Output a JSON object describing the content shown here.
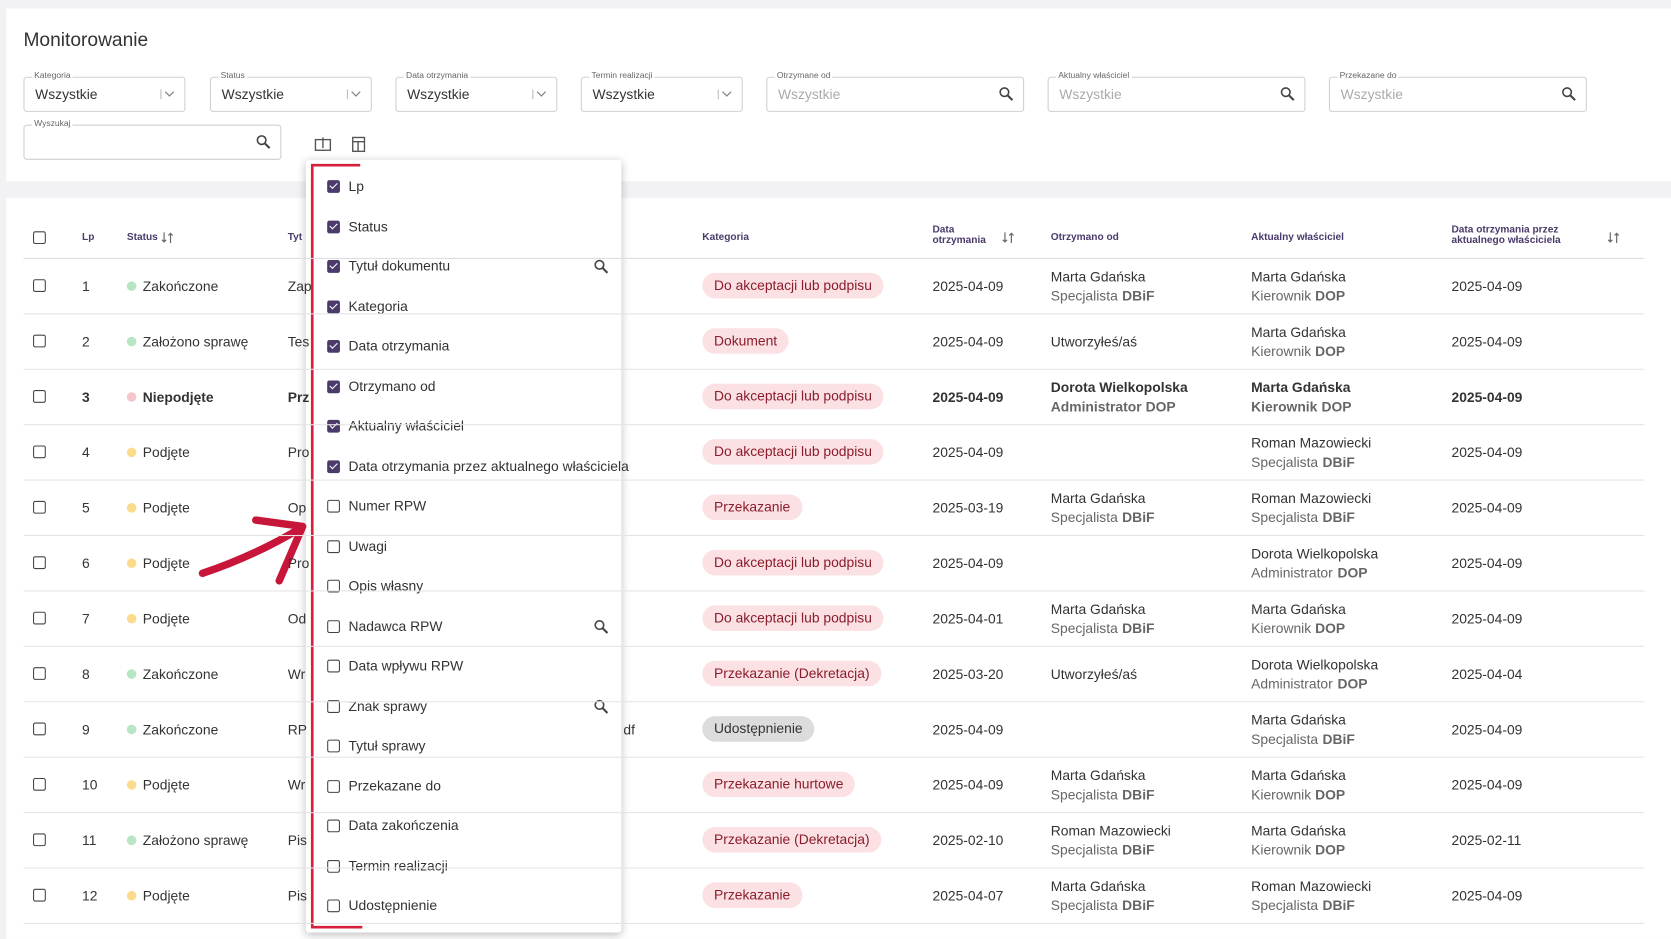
{
  "header": {
    "title": "Monitorowanie"
  },
  "filters": [
    {
      "label": "Kategoria",
      "value": "Wszystkie",
      "kind": "select"
    },
    {
      "label": "Status",
      "value": "Wszystkie",
      "kind": "select"
    },
    {
      "label": "Data otrzymania",
      "value": "Wszystkie",
      "kind": "select"
    },
    {
      "label": "Termin realizacji",
      "value": "Wszystkie",
      "kind": "select"
    },
    {
      "label": "Otrzymane od",
      "placeholder": "Wszystkie",
      "kind": "search"
    },
    {
      "label": "Aktualny właściciel",
      "placeholder": "Wszystkie",
      "kind": "search"
    },
    {
      "label": "Przekazane do",
      "placeholder": "Wszystkie",
      "kind": "search"
    },
    {
      "label": "Wyszukaj",
      "kind": "search"
    }
  ],
  "table": {
    "columns": [
      {
        "label": "Lp"
      },
      {
        "label": "Status",
        "sortable": true
      },
      {
        "label": "Tyt"
      },
      {
        "label": "Kategoria"
      },
      {
        "label": "Data otrzymania",
        "sortable": true
      },
      {
        "label": "Otrzymano od"
      },
      {
        "label": "Aktualny właściciel"
      },
      {
        "label": "Data otrzymania przez aktualnego właściciela",
        "sortable": true
      }
    ],
    "rows": [
      {
        "lp": "1",
        "status": "Zakończone",
        "status_color": "#b8e6c4",
        "title": "Zap",
        "category": "Do akceptacji lub podpisu",
        "date": "2025-04-09",
        "from": {
          "name": "Marta Gdańska",
          "role": "Specjalista",
          "unit": "DBiF"
        },
        "owner": {
          "name": "Marta Gdańska",
          "role": "Kierownik",
          "unit": "DOP"
        },
        "owner_date": "2025-04-09"
      },
      {
        "lp": "2",
        "status": "Założono sprawę",
        "status_color": "#b8e6c4",
        "title": "Tes",
        "category": "Dokument",
        "date": "2025-04-09",
        "from": {
          "name": "Utworzyłeś/aś"
        },
        "owner": {
          "name": "Marta Gdańska",
          "role": "Kierownik",
          "unit": "DOP"
        },
        "owner_date": "2025-04-09"
      },
      {
        "lp": "3",
        "status": "Niepodjęte",
        "status_color": "#f7c6cc",
        "bold": true,
        "title": "Prz",
        "category": "Do akceptacji lub podpisu",
        "date": "2025-04-09",
        "from": {
          "name": "Dorota Wielkopolska",
          "role": "Administrator",
          "unit": "DOP"
        },
        "owner": {
          "name": "Marta Gdańska",
          "role": "Kierownik",
          "unit": "DOP"
        },
        "owner_date": "2025-04-09"
      },
      {
        "lp": "4",
        "status": "Podjęte",
        "status_color": "#fbdc8c",
        "title": "Pro",
        "category": "Do akceptacji lub podpisu",
        "date": "2025-04-09",
        "owner": {
          "name": "Roman Mazowiecki",
          "role": "Specjalista",
          "unit": "DBiF"
        },
        "owner_date": "2025-04-09"
      },
      {
        "lp": "5",
        "status": "Podjęte",
        "status_color": "#fbdc8c",
        "title": "Op",
        "category": "Przekazanie",
        "date": "2025-03-19",
        "from": {
          "name": "Marta Gdańska",
          "role": "Specjalista",
          "unit": "DBiF"
        },
        "owner": {
          "name": "Roman Mazowiecki",
          "role": "Specjalista",
          "unit": "DBiF"
        },
        "owner_date": "2025-04-09"
      },
      {
        "lp": "6",
        "status": "Podjęte",
        "status_color": "#fbdc8c",
        "title": "Pro",
        "category": "Do akceptacji lub podpisu",
        "date": "2025-04-09",
        "owner": {
          "name": "Dorota Wielkopolska",
          "role": "Administrator",
          "unit": "DOP"
        },
        "owner_date": "2025-04-09"
      },
      {
        "lp": "7",
        "status": "Podjęte",
        "status_color": "#fbdc8c",
        "title": "Od",
        "category": "Do akceptacji lub podpisu",
        "date": "2025-04-01",
        "from": {
          "name": "Marta Gdańska",
          "role": "Specjalista",
          "unit": "DBiF"
        },
        "owner": {
          "name": "Marta Gdańska",
          "role": "Kierownik",
          "unit": "DOP"
        },
        "owner_date": "2025-04-09"
      },
      {
        "lp": "8",
        "status": "Zakończone",
        "status_color": "#b8e6c4",
        "title": "Wr",
        "category": "Przekazanie (Dekretacja)",
        "date": "2025-03-20",
        "from": {
          "name": "Utworzyłeś/aś"
        },
        "owner": {
          "name": "Dorota Wielkopolska",
          "role": "Administrator",
          "unit": "DOP"
        },
        "owner_date": "2025-04-04"
      },
      {
        "lp": "9",
        "status": "Zakończone",
        "status_color": "#b8e6c4",
        "title": "RP",
        "title_tail": "df",
        "category": "Udostępnienie",
        "category_color": "#dcdcdc",
        "date": "2025-04-09",
        "owner": {
          "name": "Marta Gdańska",
          "role": "Specjalista",
          "unit": "DBiF"
        },
        "owner_date": "2025-04-09"
      },
      {
        "lp": "10",
        "status": "Podjęte",
        "status_color": "#fbdc8c",
        "title": "Wr",
        "category": "Przekazanie hurtowe",
        "date": "2025-04-09",
        "from": {
          "name": "Marta Gdańska",
          "role": "Specjalista",
          "unit": "DBiF"
        },
        "owner": {
          "name": "Marta Gdańska",
          "role": "Kierownik",
          "unit": "DOP"
        },
        "owner_date": "2025-04-09"
      },
      {
        "lp": "11",
        "status": "Założono sprawę",
        "status_color": "#b8e6c4",
        "title": "Pis",
        "category": "Przekazanie (Dekretacja)",
        "date": "2025-02-10",
        "from": {
          "name": "Roman Mazowiecki",
          "role": "Specjalista",
          "unit": "DBiF"
        },
        "owner": {
          "name": "Marta Gdańska",
          "role": "Kierownik",
          "unit": "DOP"
        },
        "owner_date": "2025-02-11"
      },
      {
        "lp": "12",
        "status": "Podjęte",
        "status_color": "#fbdc8c",
        "title": "Pis",
        "category": "Przekazanie",
        "date": "2025-04-07",
        "from": {
          "name": "Marta Gdańska",
          "role": "Specjalista",
          "unit": "DBiF"
        },
        "owner": {
          "name": "Roman Mazowiecki",
          "role": "Specjalista",
          "unit": "DBiF"
        },
        "owner_date": "2025-04-09"
      }
    ]
  },
  "column_menu": {
    "items": [
      {
        "label": "Lp",
        "checked": true
      },
      {
        "label": "Status",
        "checked": true
      },
      {
        "label": "Tytuł dokumentu",
        "checked": true,
        "search": true
      },
      {
        "label": "Kategoria",
        "checked": true
      },
      {
        "label": "Data otrzymania",
        "checked": true
      },
      {
        "label": "Otrzymano od",
        "checked": true
      },
      {
        "label": "Aktualny właściciel",
        "checked": true
      },
      {
        "label": "Data otrzymania przez aktualnego właściciela",
        "checked": true
      },
      {
        "label": "Numer RPW",
        "checked": false
      },
      {
        "label": "Uwagi",
        "checked": false
      },
      {
        "label": "Opis własny",
        "checked": false
      },
      {
        "label": "Nadawca RPW",
        "checked": false,
        "search": true
      },
      {
        "label": "Data wpływu RPW",
        "checked": false
      },
      {
        "label": "Znak sprawy",
        "checked": false,
        "search": true
      },
      {
        "label": "Tytuł sprawy",
        "checked": false
      },
      {
        "label": "Przekazane do",
        "checked": false
      },
      {
        "label": "Data zakończenia",
        "checked": false
      },
      {
        "label": "Termin realizacji",
        "checked": false
      },
      {
        "label": "Udostępnienie",
        "checked": false
      }
    ]
  }
}
